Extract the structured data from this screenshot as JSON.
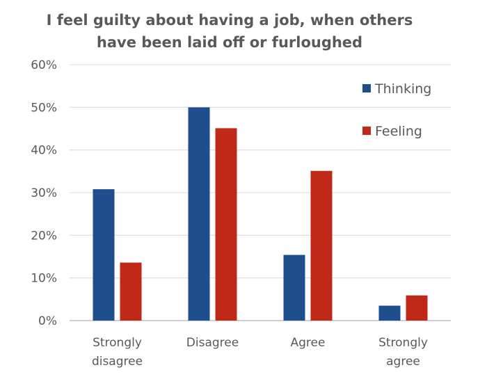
{
  "chart_data": {
    "type": "bar",
    "title_lines": [
      "I feel guilty about having a job, when others",
      "have been laid off or furloughed"
    ],
    "categories": [
      [
        "Strongly",
        "disagree"
      ],
      [
        "Disagree"
      ],
      [
        "Agree"
      ],
      [
        "Strongly",
        "agree"
      ]
    ],
    "series": [
      {
        "name": "Thinking",
        "color": "#1f4e8f",
        "values": [
          30.8,
          50.0,
          15.4,
          3.5
        ]
      },
      {
        "name": "Feeling",
        "color": "#c02817",
        "values": [
          13.6,
          45.1,
          35.1,
          5.9
        ]
      }
    ],
    "yticks": [
      "0%",
      "10%",
      "20%",
      "30%",
      "40%",
      "50%",
      "60%"
    ],
    "ylim": [
      0,
      60
    ],
    "grid": true,
    "legend": "top-right"
  }
}
